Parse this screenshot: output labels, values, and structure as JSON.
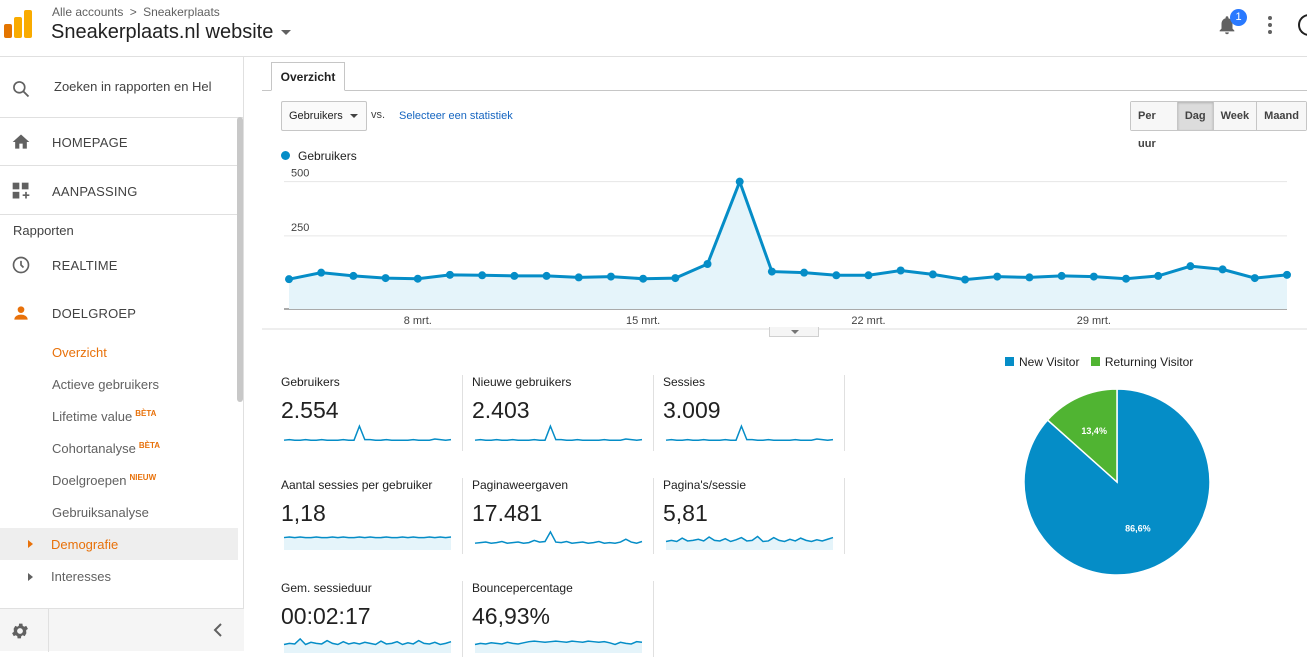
{
  "header": {
    "breadcrumb": [
      "Alle accounts",
      ">",
      "Sneakerplaats"
    ],
    "property_name": "Sneakerplaats.nl website",
    "notification_count": "1"
  },
  "sidebar": {
    "search_placeholder": "Zoeken in rapporten en Hel",
    "nav": {
      "home": "HOMEPAGE",
      "custom": "AANPASSING",
      "reports_label": "Rapporten",
      "realtime": "REALTIME",
      "audience": "DOELGROEP"
    },
    "audience_items": [
      {
        "label": "Overzicht",
        "badge": "",
        "active": true
      },
      {
        "label": "Actieve gebruikers",
        "badge": ""
      },
      {
        "label": "Lifetime value",
        "badge": "BÈTA"
      },
      {
        "label": "Cohortanalyse",
        "badge": "BÈTA"
      },
      {
        "label": "Doelgroepen",
        "badge": "NIEUW"
      },
      {
        "label": "Gebruiksanalyse",
        "badge": ""
      }
    ],
    "expandable": [
      {
        "label": "Demografie",
        "active": true
      },
      {
        "label": "Interesses"
      }
    ]
  },
  "main": {
    "tab": "Overzicht",
    "metric_select": "Gebruikers",
    "vs_label": "vs.",
    "select_stat_link": "Selecteer een statistiek",
    "period_buttons": [
      "Per uur",
      "Dag",
      "Week",
      "Maand"
    ],
    "period_selected": "Dag",
    "colors": {
      "series": "#058dc7",
      "fill": "#e5f4fa",
      "new": "#058dc7",
      "returning": "#50b432",
      "accent": "#e8710a"
    }
  },
  "chart_data": [
    {
      "type": "line",
      "series": [
        {
          "name": "Gebruikers",
          "values": [
            50,
            80,
            65,
            55,
            52,
            70,
            68,
            65,
            65,
            58,
            62,
            52,
            55,
            120,
            500,
            85,
            80,
            68,
            68,
            90,
            72,
            48,
            62,
            58,
            65,
            62,
            52,
            65,
            110,
            95,
            55,
            70
          ]
        }
      ],
      "x_ticks": [
        {
          "index": 4,
          "label": "8 mrt."
        },
        {
          "index": 11,
          "label": "15 mrt."
        },
        {
          "index": 18,
          "label": "22 mrt."
        },
        {
          "index": 25,
          "label": "29 mrt."
        }
      ],
      "y_ticks": [
        "250",
        "500"
      ],
      "ylim": [
        0,
        540
      ],
      "grid": true,
      "legend": "top-left"
    },
    {
      "type": "pie",
      "categories": [
        "New Visitor",
        "Returning Visitor"
      ],
      "values": [
        86.6,
        13.4
      ],
      "labels": [
        "86,6%",
        "13,4%"
      ],
      "legend": "top"
    }
  ],
  "scorecards": [
    {
      "label": "Gebruikers",
      "value": "2.554",
      "spark": [
        5,
        6,
        5,
        5,
        6,
        5,
        5,
        6,
        5,
        5,
        5,
        6,
        5,
        5,
        30,
        6,
        6,
        5,
        5,
        6,
        5,
        5,
        5,
        5,
        6,
        5,
        5,
        5,
        7,
        6,
        5,
        6
      ],
      "area": false
    },
    {
      "label": "Nieuwe gebruikers",
      "value": "2.403",
      "spark": [
        5,
        6,
        5,
        5,
        6,
        5,
        5,
        6,
        5,
        5,
        5,
        6,
        5,
        5,
        30,
        6,
        6,
        5,
        5,
        6,
        5,
        5,
        5,
        5,
        6,
        5,
        5,
        5,
        7,
        6,
        5,
        6
      ],
      "area": false
    },
    {
      "label": "Sessies",
      "value": "3.009",
      "spark": [
        5,
        6,
        5,
        5,
        6,
        5,
        5,
        6,
        5,
        5,
        5,
        6,
        5,
        5,
        30,
        6,
        6,
        5,
        5,
        6,
        5,
        5,
        5,
        5,
        6,
        5,
        5,
        5,
        7,
        6,
        5,
        6
      ],
      "area": false
    },
    {
      "label": "Aantal sessies per gebruiker",
      "value": "1,18",
      "spark": [
        15,
        16,
        15,
        16,
        15,
        15,
        16,
        15,
        15,
        16,
        15,
        16,
        15,
        15,
        16,
        15,
        16,
        15,
        15,
        16,
        15,
        15,
        16,
        15,
        16,
        15,
        15,
        16,
        15,
        16,
        15,
        16
      ],
      "area": true
    },
    {
      "label": "Paginaweergaven",
      "value": "17.481",
      "spark": [
        5,
        6,
        7,
        5,
        6,
        8,
        5,
        6,
        7,
        5,
        6,
        10,
        7,
        8,
        25,
        7,
        6,
        8,
        5,
        6,
        7,
        5,
        6,
        8,
        5,
        6,
        5,
        7,
        12,
        7,
        5,
        8
      ],
      "area": false
    },
    {
      "label": "Pagina's/sessie",
      "value": "5,81",
      "spark": [
        8,
        10,
        8,
        14,
        9,
        10,
        12,
        9,
        16,
        10,
        9,
        13,
        8,
        11,
        15,
        9,
        10,
        17,
        8,
        9,
        15,
        10,
        8,
        12,
        9,
        14,
        10,
        8,
        11,
        9,
        12,
        15
      ],
      "area": true
    },
    {
      "label": "Gem. sessieduur",
      "value": "00:02:17",
      "spark": [
        8,
        10,
        9,
        18,
        8,
        12,
        10,
        9,
        15,
        10,
        8,
        13,
        9,
        11,
        9,
        12,
        10,
        8,
        14,
        9,
        10,
        13,
        8,
        11,
        9,
        15,
        10,
        9,
        12,
        8,
        10,
        13
      ],
      "area": true
    },
    {
      "label": "Bouncepercentage",
      "value": "46,93%",
      "spark": [
        8,
        10,
        9,
        11,
        10,
        9,
        12,
        10,
        9,
        11,
        13,
        14,
        13,
        12,
        13,
        14,
        13,
        12,
        14,
        13,
        12,
        14,
        13,
        12,
        13,
        11,
        8,
        12,
        10,
        9,
        13,
        12
      ],
      "area": true
    }
  ]
}
